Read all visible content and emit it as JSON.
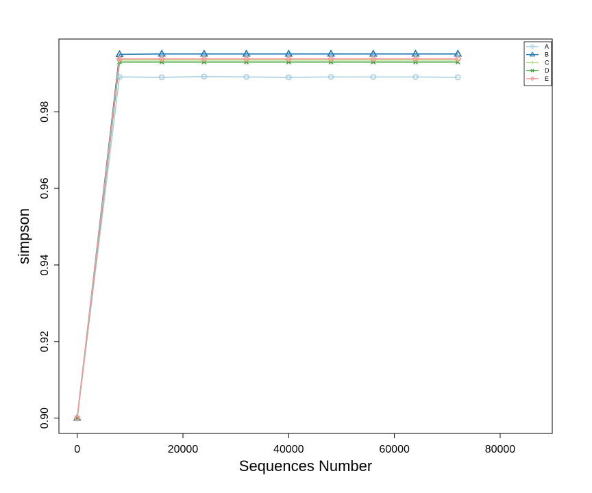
{
  "chart_data": {
    "type": "line",
    "x_label": "Sequences Number",
    "y_label": "simpson",
    "x": [
      0,
      8000,
      16000,
      24000,
      32000,
      40000,
      48000,
      56000,
      64000,
      72000
    ],
    "series": [
      {
        "name": "A",
        "color": "#a6cee3",
        "marker": "circle",
        "values": [
          0.9,
          0.9891,
          0.989,
          0.9892,
          0.9891,
          0.989,
          0.9891,
          0.9891,
          0.9891,
          0.989
        ]
      },
      {
        "name": "B",
        "color": "#1f78b4",
        "marker": "triangle",
        "values": [
          0.9,
          0.995,
          0.9951,
          0.9951,
          0.9951,
          0.9951,
          0.9951,
          0.9951,
          0.9951,
          0.9951
        ]
      },
      {
        "name": "C",
        "color": "#b2df8a",
        "marker": "plus",
        "values": [
          0.9,
          0.9935,
          0.9935,
          0.9935,
          0.9935,
          0.9935,
          0.9935,
          0.9935,
          0.9935,
          0.9935
        ]
      },
      {
        "name": "D",
        "color": "#33a02c",
        "marker": "cross",
        "values": [
          0.9,
          0.993,
          0.993,
          0.993,
          0.993,
          0.993,
          0.993,
          0.993,
          0.993,
          0.993
        ]
      },
      {
        "name": "E",
        "color": "#fb9a99",
        "marker": "diamond",
        "values": [
          0.9,
          0.9938,
          0.9938,
          0.9938,
          0.9938,
          0.9938,
          0.9938,
          0.9938,
          0.9938,
          0.9938
        ]
      }
    ],
    "xlim": [
      -3456,
      89856
    ],
    "xticks": [
      0,
      20000,
      40000,
      60000,
      80000
    ],
    "ylim": [
      0.896,
      0.999
    ],
    "yticks": [
      {
        "value": 0.9,
        "label": "0.90"
      },
      0.92,
      0.94,
      0.96,
      0.98
    ],
    "legend": "top-right",
    "grid": false
  }
}
